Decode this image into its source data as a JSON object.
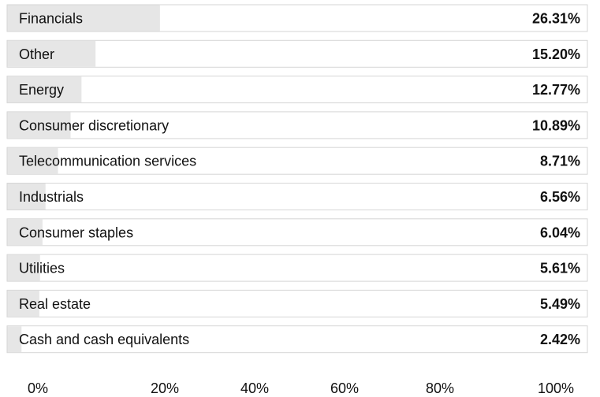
{
  "chart_data": {
    "type": "bar",
    "orientation": "horizontal",
    "categories": [
      "Financials",
      "Other",
      "Energy",
      "Consumer discretionary",
      "Telecommunication services",
      "Industrials",
      "Consumer staples",
      "Utilities",
      "Real estate",
      "Cash and cash equivalents"
    ],
    "values": [
      26.31,
      15.2,
      12.77,
      10.89,
      8.71,
      6.56,
      6.04,
      5.61,
      5.49,
      2.42
    ],
    "value_labels": [
      "26.31%",
      "15.20%",
      "12.77%",
      "10.89%",
      "8.71%",
      "6.56%",
      "6.04%",
      "5.61%",
      "5.49%",
      "2.42%"
    ],
    "xlim": [
      0,
      100
    ],
    "x_tick_labels": [
      "0%",
      "20%",
      "40%",
      "60%",
      "80%",
      "100%"
    ],
    "title": "",
    "xlabel": "",
    "ylabel": "",
    "grid": false,
    "legend": "none",
    "colors": {
      "bar_fill": "#e6e6e6",
      "row_background": "#ffffff",
      "row_border": "#d6d6d6",
      "text": "#111111"
    }
  }
}
